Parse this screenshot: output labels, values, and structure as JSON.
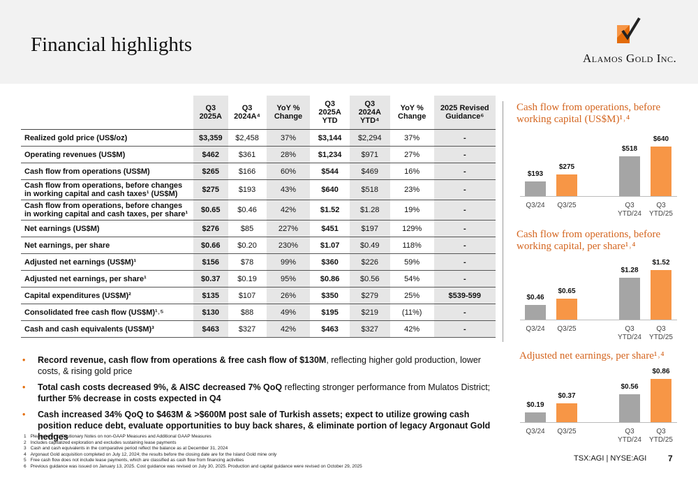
{
  "header": {
    "title": "Financial highlights",
    "company": "Alamos Gold Inc."
  },
  "table": {
    "columns": [
      "Q3 2025A",
      "Q3 2024A⁴",
      "YoY % Change",
      "Q3 2025A YTD",
      "Q3 2024A YTD⁴",
      "YoY % Change",
      "2025 Revised Guidance⁶"
    ],
    "rows": [
      [
        "Realized gold price (US$/oz)",
        "$3,359",
        "$2,458",
        "37%",
        "$3,144",
        "$2,294",
        "37%",
        "-"
      ],
      [
        "Operating revenues (US$M)",
        "$462",
        "$361",
        "28%",
        "$1,234",
        "$971",
        "27%",
        "-"
      ],
      [
        "Cash flow from operations (US$M)",
        "$265",
        "$166",
        "60%",
        "$544",
        "$469",
        "16%",
        "-"
      ],
      [
        "Cash flow from operations, before changes in working capital and cash taxes¹ (US$M)",
        "$275",
        "$193",
        "43%",
        "$640",
        "$518",
        "23%",
        "-"
      ],
      [
        "Cash flow from operations, before changes in working capital and cash taxes, per share¹",
        "$0.65",
        "$0.46",
        "42%",
        "$1.52",
        "$1.28",
        "19%",
        "-"
      ],
      [
        "Net earnings (US$M)",
        "$276",
        "$85",
        "227%",
        "$451",
        "$197",
        "129%",
        "-"
      ],
      [
        "Net earnings, per share",
        "$0.66",
        "$0.20",
        "230%",
        "$1.07",
        "$0.49",
        "118%",
        "-"
      ],
      [
        "Adjusted net earnings (US$M)¹",
        "$156",
        "$78",
        "99%",
        "$360",
        "$226",
        "59%",
        "-"
      ],
      [
        "Adjusted net earnings, per share¹",
        "$0.37",
        "$0.19",
        "95%",
        "$0.86",
        "$0.56",
        "54%",
        "-"
      ],
      [
        "Capital expenditures (US$M)²",
        "$135",
        "$107",
        "26%",
        "$350",
        "$279",
        "25%",
        "$539-599"
      ],
      [
        "Consolidated free cash flow (US$M)¹˒⁵",
        "$130",
        "$88",
        "49%",
        "$195",
        "$219",
        "(11%)",
        "-"
      ],
      [
        "Cash and cash equivalents (US$M)³",
        "$463",
        "$327",
        "42%",
        "$463",
        "$327",
        "42%",
        "-"
      ]
    ]
  },
  "bullets": [
    [
      {
        "text": "Record revenue, cash flow from operations & free cash flow of $130M",
        "bold": true
      },
      {
        "text": ", reflecting higher gold production, lower costs, & rising gold price",
        "bold": false
      }
    ],
    [
      {
        "text": "Total cash costs decreased 9%, & AISC decreased 7% QoQ",
        "bold": true
      },
      {
        "text": " reflecting stronger performance from Mulatos District; ",
        "bold": false
      },
      {
        "text": "further 5% decrease in costs expected in Q4",
        "bold": true
      }
    ],
    [
      {
        "text": "Cash increased 34% QoQ to $463M & >$600M post sale of Turkish assets; expect to utilize growing cash position reduce debt, evaluate opportunities to buy back shares, & eliminate portion of legacy Argonaut Gold hedges",
        "bold": true
      }
    ]
  ],
  "footnotes": [
    {
      "number": 1,
      "text": "Please refer to Cautionary Notes on non-GAAP Measures and Additional GAAP Measures"
    },
    {
      "number": 2,
      "text": "Includes capitalized exploration and excludes sustaining lease payments"
    },
    {
      "number": 3,
      "text": "Cash and cash equivalents in the comparative period reflect the balance as at December 31, 2024"
    },
    {
      "number": 4,
      "text": "Argonaut Gold acquisition completed on July 12, 2024; the results before the closing date are for the Island Gold mine only"
    },
    {
      "number": 5,
      "text": "Free cash flow does not include lease payments, which are classified as cash flow from financing activities"
    },
    {
      "number": 6,
      "text": "Previous guidance was issued on January 13, 2025. Cost guidance was revised on July 30, 2025. Production and capital guidance were revised on October 29, 2025"
    }
  ],
  "chart_data": [
    {
      "type": "bar",
      "title": "Cash flow from operations, before working capital (US$M)¹˒⁴",
      "categories": [
        "Q3/24",
        "Q3/25",
        "Q3 YTD/24",
        "Q3 YTD/25"
      ],
      "values": [
        193,
        275,
        518,
        640
      ],
      "value_labels": [
        "$193",
        "$275",
        "$518",
        "$640"
      ],
      "colors": [
        "#a5a5a5",
        "#f79646",
        "#a5a5a5",
        "#f79646"
      ]
    },
    {
      "type": "bar",
      "title": "Cash flow from operations, before working capital, per share¹˒⁴",
      "categories": [
        "Q3/24",
        "Q3/25",
        "Q3 YTD/24",
        "Q3 YTD/25"
      ],
      "values": [
        0.46,
        0.65,
        1.28,
        1.52
      ],
      "value_labels": [
        "$0.46",
        "$0.65",
        "$1.28",
        "$1.52"
      ],
      "colors": [
        "#a5a5a5",
        "#f79646",
        "#a5a5a5",
        "#f79646"
      ]
    },
    {
      "type": "bar",
      "title": "Adjusted net earnings, per share¹˒⁴",
      "categories": [
        "Q3/24",
        "Q3/25",
        "Q3 YTD/24",
        "Q3 YTD/25"
      ],
      "values": [
        0.19,
        0.37,
        0.56,
        0.86
      ],
      "value_labels": [
        "$0.19",
        "$0.37",
        "$0.56",
        "$0.86"
      ],
      "colors": [
        "#a5a5a5",
        "#f79646",
        "#a5a5a5",
        "#f79646"
      ]
    }
  ],
  "footer": {
    "tickers": "TSX:AGI | NYSE:AGI",
    "page": 7
  }
}
